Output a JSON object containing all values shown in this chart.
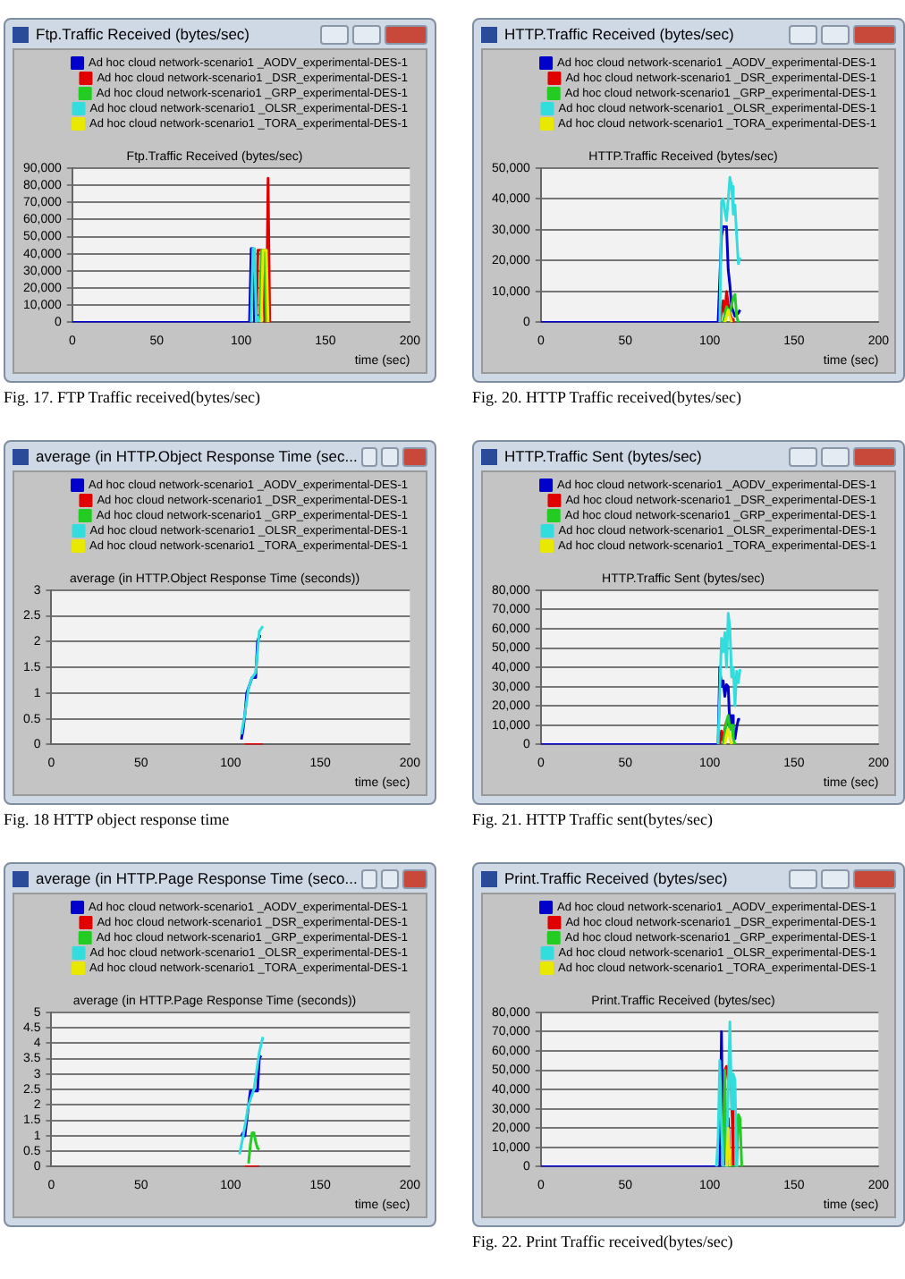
{
  "chart_data": [
    {
      "type": "line",
      "subtitle": "Ftp.Traffic Received (bytes/sec)",
      "title": "Ftp.Traffic Received (bytes/sec)",
      "xlabel": "time (sec)",
      "annotations": [
        "Fig. 17. FTP Traffic received(bytes/sec)"
      ],
      "xlim": [
        0,
        200
      ],
      "xticks": [
        0,
        50,
        100,
        150,
        200
      ],
      "ylim": [
        0,
        90000
      ],
      "yticks": [
        0,
        {
          "value": 10000,
          "label": "10,000"
        },
        {
          "value": 20000,
          "label": "20,000"
        },
        {
          "value": 30000,
          "label": "30,000"
        },
        {
          "value": 40000,
          "label": "40,000"
        },
        {
          "value": 50000,
          "label": "50,000"
        },
        {
          "value": 60000,
          "label": "60,000"
        },
        {
          "value": 70000,
          "label": "70,000"
        },
        {
          "value": 80000,
          "label": "80,000"
        },
        {
          "value": 90000,
          "label": "90,000"
        }
      ],
      "grid": "y",
      "legend": "top right",
      "marker": "none",
      "line_style": "solid",
      "series": [
        {
          "name": "Ad hoc cloud network-scenario1 _AODV_experimental-DES-1",
          "color": "#0000cc",
          "x": [
            0,
            105,
            106,
            107,
            108,
            110,
            111
          ],
          "values": [
            0,
            0,
            43000,
            43000,
            0,
            4000,
            0
          ]
        },
        {
          "name": "Ad hoc cloud network-scenario1 _DSR_experimental-DES-1",
          "color": "#e00000",
          "x": [
            109,
            110,
            113,
            114,
            115,
            116,
            117
          ],
          "values": [
            0,
            42000,
            42000,
            0,
            0,
            84000,
            0
          ]
        },
        {
          "name": "Ad hoc cloud network-scenario1 _GRP_experimental-DES-1",
          "color": "#22cc22",
          "x": [
            111,
            112,
            114,
            115
          ],
          "values": [
            0,
            42000,
            42000,
            0
          ]
        },
        {
          "name": "Ad hoc cloud network-scenario1 _OLSR_experimental-DES-1",
          "color": "#33dddd",
          "x": [
            106,
            107,
            108,
            109,
            110,
            111
          ],
          "values": [
            0,
            43000,
            43000,
            0,
            3000,
            0
          ]
        },
        {
          "name": "Ad hoc cloud network-scenario1 _TORA_experimental-DES-1",
          "color": "#e8e800",
          "x": [
            112,
            113,
            115,
            116
          ],
          "values": [
            0,
            42000,
            42000,
            0
          ]
        }
      ]
    },
    {
      "type": "line",
      "subtitle": "average (in HTTP.Object Response Time (sec...",
      "title": "average (in HTTP.Object Response Time (seconds))",
      "xlabel": "time (sec)",
      "annotations": [
        "Fig. 18 HTTP object response time"
      ],
      "xlim": [
        0,
        200
      ],
      "xticks": [
        0,
        50,
        100,
        150,
        200
      ],
      "ylim": [
        0,
        3
      ],
      "yticks": [
        0,
        0.5,
        1,
        1.5,
        2,
        2.5,
        3
      ],
      "grid": "y",
      "legend": "top right",
      "marker": "none",
      "line_style": "solid",
      "series": [
        {
          "name": "Ad hoc cloud network-scenario1 _AODV_experimental-DES-1",
          "color": "#0000cc",
          "x": [
            106,
            107,
            108,
            109,
            110,
            111,
            112,
            113,
            114,
            115,
            116,
            117
          ],
          "values": [
            0.1,
            0.3,
            0.6,
            1.0,
            1.1,
            1.2,
            1.3,
            1.3,
            1.3,
            2.0,
            2.1,
            2.1
          ]
        },
        {
          "name": "Ad hoc cloud network-scenario1 _DSR_experimental-DES-1",
          "color": "#e00000",
          "x": [
            108,
            118
          ],
          "values": [
            0,
            0
          ]
        },
        {
          "name": "Ad hoc cloud network-scenario1 _GRP_experimental-DES-1",
          "color": "#22cc22"
        },
        {
          "name": "Ad hoc cloud network-scenario1 _OLSR_experimental-DES-1",
          "color": "#33dddd",
          "x": [
            106,
            108,
            110,
            112,
            114,
            116,
            118
          ],
          "values": [
            0.2,
            0.6,
            1.1,
            1.3,
            1.4,
            2.2,
            2.3
          ]
        },
        {
          "name": "Ad hoc cloud network-scenario1 _TORA_experimental-DES-1",
          "color": "#e8e800"
        }
      ]
    },
    {
      "type": "line",
      "subtitle": "average (in HTTP.Page Response Time (seco...",
      "title": "average (in HTTP.Page Response Time (seconds))",
      "xlabel": "time (sec)",
      "xlim": [
        0,
        200
      ],
      "xticks": [
        0,
        50,
        100,
        150,
        200
      ],
      "ylim": [
        0,
        5
      ],
      "yticks": [
        0,
        0.5,
        1,
        1.5,
        2,
        2.5,
        3,
        3.5,
        4,
        4.5,
        5
      ],
      "grid": "y",
      "legend": "top right",
      "marker": "none",
      "line_style": "solid",
      "series": [
        {
          "name": "Ad hoc cloud network-scenario1 _AODV_experimental-DES-1",
          "color": "#0000cc",
          "x": [
            106,
            107,
            108,
            110,
            111,
            113,
            115,
            116,
            117
          ],
          "values": [
            1.0,
            1.1,
            1.0,
            2.0,
            2.45,
            2.45,
            2.45,
            3.5,
            3.6
          ]
        },
        {
          "name": "Ad hoc cloud network-scenario1 _DSR_experimental-DES-1",
          "color": "#e00000",
          "x": [
            108,
            116
          ],
          "values": [
            0,
            0
          ]
        },
        {
          "name": "Ad hoc cloud network-scenario1 _GRP_experimental-DES-1",
          "color": "#22cc22",
          "x": [
            110,
            111,
            112,
            113,
            114,
            115,
            116
          ],
          "values": [
            0.1,
            0.7,
            1.1,
            1.1,
            0.8,
            0.6,
            0.55
          ]
        },
        {
          "name": "Ad hoc cloud network-scenario1 _OLSR_experimental-DES-1",
          "color": "#33dddd",
          "x": [
            105,
            107,
            110,
            113,
            115,
            116,
            118
          ],
          "values": [
            0.4,
            1.0,
            2.0,
            2.5,
            3.3,
            3.7,
            4.2
          ]
        },
        {
          "name": "Ad hoc cloud network-scenario1 _TORA_experimental-DES-1",
          "color": "#e8e800"
        }
      ]
    },
    {
      "type": "line",
      "subtitle": "HTTP.Traffic Received (bytes/sec)",
      "title": "HTTP.Traffic Received (bytes/sec)",
      "xlabel": "time (sec)",
      "annotations": [
        "Fig. 20. HTTP Traffic received(bytes/sec)"
      ],
      "xlim": [
        0,
        200
      ],
      "xticks": [
        0,
        50,
        100,
        150,
        200
      ],
      "ylim": [
        0,
        50000
      ],
      "yticks": [
        0,
        {
          "value": 10000,
          "label": "10,000"
        },
        {
          "value": 20000,
          "label": "20,000"
        },
        {
          "value": 30000,
          "label": "30,000"
        },
        {
          "value": 40000,
          "label": "40,000"
        },
        {
          "value": 50000,
          "label": "50,000"
        }
      ],
      "grid": "y",
      "legend": "top right",
      "marker": "none",
      "line_style": "solid",
      "series": [
        {
          "name": "Ad hoc cloud network-scenario1 _AODV_experimental-DES-1",
          "color": "#0000cc",
          "x": [
            0,
            105,
            107,
            108,
            110,
            111,
            112,
            113,
            115,
            117,
            118
          ],
          "values": [
            0,
            0,
            28000,
            31000,
            31000,
            17000,
            12000,
            5000,
            2000,
            3000,
            4000
          ]
        },
        {
          "name": "Ad hoc cloud network-scenario1 _DSR_experimental-DES-1",
          "color": "#e00000",
          "x": [
            106,
            108,
            109,
            110,
            111,
            112,
            113,
            114
          ],
          "values": [
            0,
            7000,
            2000,
            10000,
            6000,
            3000,
            1000,
            0
          ]
        },
        {
          "name": "Ad hoc cloud network-scenario1 _GRP_experimental-DES-1",
          "color": "#22cc22",
          "x": [
            108,
            110,
            112,
            114,
            115,
            116,
            117
          ],
          "values": [
            0,
            5000,
            3000,
            8000,
            9000,
            2000,
            0
          ]
        },
        {
          "name": "Ad hoc cloud network-scenario1 _OLSR_experimental-DES-1",
          "color": "#33dddd",
          "x": [
            106,
            107,
            108,
            109,
            110,
            111,
            112,
            113,
            114,
            115,
            116,
            117,
            118
          ],
          "values": [
            0,
            39000,
            40000,
            36000,
            33000,
            40000,
            47000,
            44000,
            35000,
            38000,
            28000,
            19000,
            21000
          ]
        },
        {
          "name": "Ad hoc cloud network-scenario1 _TORA_experimental-DES-1",
          "color": "#e8e800",
          "x": [
            109,
            111,
            112,
            113
          ],
          "values": [
            0,
            4000,
            2000,
            0
          ]
        }
      ]
    },
    {
      "type": "line",
      "subtitle": "HTTP.Traffic Sent (bytes/sec)",
      "title": "HTTP.Traffic Sent (bytes/sec)",
      "xlabel": "time (sec)",
      "annotations": [
        "Fig. 21. HTTP Traffic sent(bytes/sec)"
      ],
      "xlim": [
        0,
        200
      ],
      "xticks": [
        0,
        50,
        100,
        150,
        200
      ],
      "ylim": [
        0,
        80000
      ],
      "yticks": [
        0,
        {
          "value": 10000,
          "label": "10,000"
        },
        {
          "value": 20000,
          "label": "20,000"
        },
        {
          "value": 30000,
          "label": "30,000"
        },
        {
          "value": 40000,
          "label": "40,000"
        },
        {
          "value": 50000,
          "label": "50,000"
        },
        {
          "value": 60000,
          "label": "60,000"
        },
        {
          "value": 70000,
          "label": "70,000"
        },
        {
          "value": 80000,
          "label": "80,000"
        }
      ],
      "grid": "y",
      "legend": "top right",
      "marker": "none",
      "line_style": "solid",
      "series": [
        {
          "name": "Ad hoc cloud network-scenario1 _AODV_experimental-DES-1",
          "color": "#0000cc",
          "x": [
            0,
            105,
            106,
            107,
            108,
            109,
            110,
            111,
            112,
            113,
            114,
            115,
            116,
            117,
            118
          ],
          "values": [
            0,
            0,
            40000,
            30000,
            33000,
            25000,
            31000,
            30000,
            8000,
            15000,
            5000,
            3000,
            9000,
            13000,
            13000
          ]
        },
        {
          "name": "Ad hoc cloud network-scenario1 _DSR_experimental-DES-1",
          "color": "#e00000",
          "x": [
            106,
            107,
            108,
            109,
            110,
            111
          ],
          "values": [
            0,
            7000,
            2000,
            8000,
            12000,
            10000
          ]
        },
        {
          "name": "Ad hoc cloud network-scenario1 _GRP_experimental-DES-1",
          "color": "#22cc22",
          "x": [
            108,
            110,
            111,
            112,
            113,
            114,
            115
          ],
          "values": [
            0,
            12000,
            15000,
            8000,
            10000,
            3000,
            0
          ]
        },
        {
          "name": "Ad hoc cloud network-scenario1 _OLSR_experimental-DES-1",
          "color": "#33dddd",
          "x": [
            105,
            107,
            108,
            109,
            110,
            111,
            112,
            113,
            114,
            115,
            116,
            117,
            118
          ],
          "values": [
            0,
            55000,
            48000,
            58000,
            40000,
            68000,
            60000,
            35000,
            40000,
            20000,
            38000,
            32000,
            39000
          ]
        },
        {
          "name": "Ad hoc cloud network-scenario1 _TORA_experimental-DES-1",
          "color": "#e8e800",
          "x": [
            109,
            110,
            111,
            112,
            113
          ],
          "values": [
            0,
            5000,
            8000,
            3000,
            0
          ]
        }
      ]
    },
    {
      "type": "line",
      "subtitle": "Print.Traffic Received (bytes/sec)",
      "title": "Print.Traffic Received (bytes/sec)",
      "xlabel": "time (sec)",
      "annotations": [
        "Fig. 22. Print Traffic received(bytes/sec)"
      ],
      "xlim": [
        0,
        200
      ],
      "xticks": [
        0,
        50,
        100,
        150,
        200
      ],
      "ylim": [
        0,
        80000
      ],
      "yticks": [
        0,
        {
          "value": 10000,
          "label": "10,000"
        },
        {
          "value": 20000,
          "label": "20,000"
        },
        {
          "value": 30000,
          "label": "30,000"
        },
        {
          "value": 40000,
          "label": "40,000"
        },
        {
          "value": 50000,
          "label": "50,000"
        },
        {
          "value": 60000,
          "label": "60,000"
        },
        {
          "value": 70000,
          "label": "70,000"
        },
        {
          "value": 80000,
          "label": "80,000"
        }
      ],
      "grid": "y",
      "legend": "top right",
      "marker": "none",
      "line_style": "solid",
      "series": [
        {
          "name": "Ad hoc cloud network-scenario1 _AODV_experimental-DES-1",
          "color": "#0000cc",
          "x": [
            0,
            106,
            107,
            108,
            109,
            110,
            111,
            112,
            113
          ],
          "values": [
            0,
            0,
            70000,
            0,
            0,
            25000,
            25000,
            0,
            0
          ]
        },
        {
          "name": "Ad hoc cloud network-scenario1 _DSR_experimental-DES-1",
          "color": "#e00000",
          "x": [
            108,
            109,
            110,
            111,
            112,
            113,
            114
          ],
          "values": [
            0,
            50000,
            52000,
            45000,
            53000,
            38000,
            0
          ]
        },
        {
          "name": "Ad hoc cloud network-scenario1 _GRP_experimental-DES-1",
          "color": "#22cc22",
          "x": [
            108,
            109,
            110,
            116,
            117,
            118,
            119
          ],
          "values": [
            0,
            50000,
            0,
            0,
            27000,
            25000,
            0
          ]
        },
        {
          "name": "Ad hoc cloud network-scenario1 _OLSR_experimental-DES-1",
          "color": "#33dddd",
          "x": [
            104,
            105,
            106,
            107,
            108,
            110,
            111,
            112,
            113,
            114,
            115,
            116,
            117
          ],
          "values": [
            0,
            15000,
            55000,
            20000,
            0,
            0,
            40000,
            75000,
            30000,
            48000,
            45000,
            0,
            0
          ]
        },
        {
          "name": "Ad hoc cloud network-scenario1 _TORA_experimental-DES-1",
          "color": "#e8e800",
          "x": [
            110,
            111,
            112
          ],
          "values": [
            0,
            20000,
            0
          ]
        }
      ]
    }
  ]
}
